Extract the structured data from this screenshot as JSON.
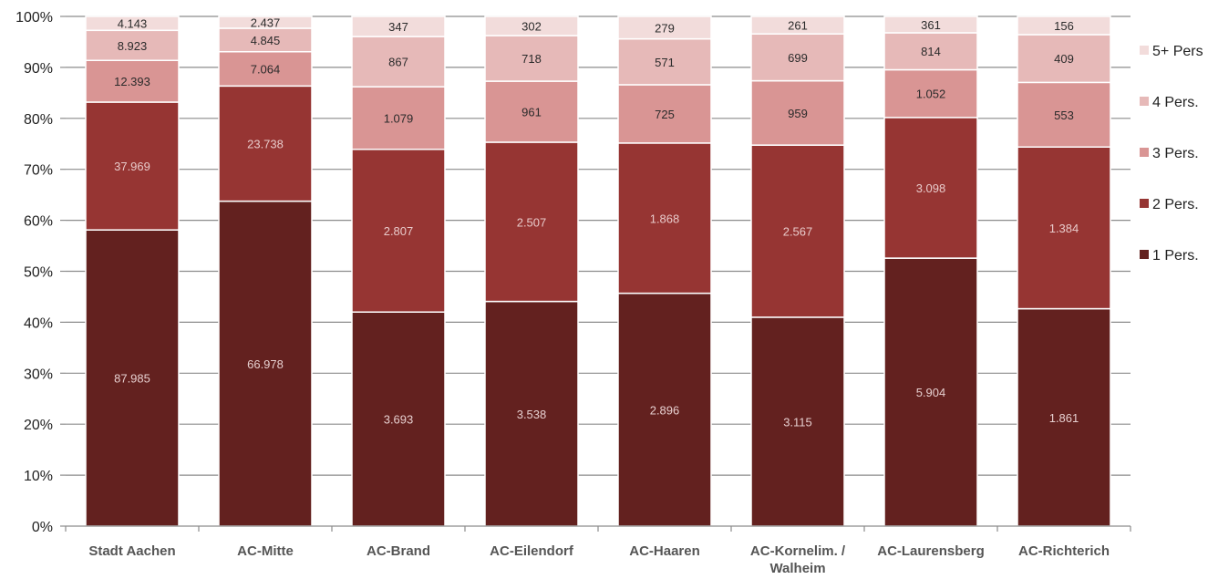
{
  "chart_data": {
    "type": "bar",
    "stacked": true,
    "normalized": true,
    "categories": [
      "Stadt Aachen",
      "AC-Mitte",
      "AC-Brand",
      "AC-Eilendorf",
      "AC-Haaren",
      "AC-Kornelim. / Walheim",
      "AC-Laurensberg",
      "AC-Richterich"
    ],
    "category_lines": [
      [
        "Stadt Aachen"
      ],
      [
        "AC-Mitte"
      ],
      [
        "AC-Brand"
      ],
      [
        "AC-Eilendorf"
      ],
      [
        "AC-Haaren"
      ],
      [
        "AC-Kornelim. /",
        "Walheim"
      ],
      [
        "AC-Laurensberg"
      ],
      [
        "AC-Richterich"
      ]
    ],
    "series": [
      {
        "name": "1 Pers.",
        "color": "#63211f",
        "label_color": "#e6cfcf",
        "values": [
          87985,
          66978,
          3693,
          3538,
          2896,
          3115,
          5904,
          1861
        ],
        "labels": [
          "87.985",
          "66.978",
          "3.693",
          "3.538",
          "2.896",
          "3.115",
          "5.904",
          "1.861"
        ]
      },
      {
        "name": "2 Pers.",
        "color": "#963533",
        "label_color": "#e8caca",
        "values": [
          37969,
          23738,
          2807,
          2507,
          1868,
          2567,
          3098,
          1384
        ],
        "labels": [
          "37.969",
          "23.738",
          "2.807",
          "2.507",
          "1.868",
          "2.567",
          "3.098",
          "1.384"
        ]
      },
      {
        "name": "3 Pers.",
        "color": "#d99594",
        "label_color": "#2b2b2b",
        "values": [
          12393,
          7064,
          1079,
          961,
          725,
          959,
          1052,
          553
        ],
        "labels": [
          "12.393",
          "7.064",
          "1.079",
          "961",
          "725",
          "959",
          "1.052",
          "553"
        ]
      },
      {
        "name": "4 Pers.",
        "color": "#e6b9b8",
        "label_color": "#2b2b2b",
        "values": [
          8923,
          4845,
          867,
          718,
          571,
          699,
          814,
          409
        ],
        "labels": [
          "8.923",
          "4.845",
          "867",
          "718",
          "571",
          "699",
          "814",
          "409"
        ]
      },
      {
        "name": "5+ Pers",
        "color": "#f2dcdb",
        "label_color": "#2b2b2b",
        "values": [
          4143,
          2437,
          347,
          302,
          279,
          261,
          361,
          156
        ],
        "labels": [
          "4.143",
          "2.437",
          "347",
          "302",
          "279",
          "261",
          "361",
          "156"
        ]
      }
    ],
    "legend_order": [
      "5+ Pers",
      "4 Pers.",
      "3 Pers.",
      "2 Pers.",
      "1 Pers."
    ],
    "yticks": [
      "0%",
      "10%",
      "20%",
      "30%",
      "40%",
      "50%",
      "60%",
      "70%",
      "80%",
      "90%",
      "100%"
    ],
    "ylim": [
      0,
      100
    ],
    "grid": true,
    "legend_position": "right",
    "title": "",
    "xlabel": "",
    "ylabel": ""
  }
}
